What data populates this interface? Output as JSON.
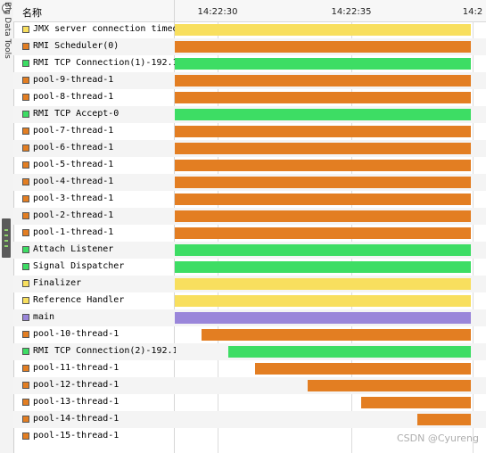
{
  "side_panel": {
    "label": "Big Data Tools"
  },
  "header": {
    "name_label": "名称",
    "time_ticks": [
      "14:22:30",
      "14:22:35",
      "14:2"
    ]
  },
  "colors": {
    "orange": "#e37e22",
    "green": "#3ddd64",
    "yellow": "#f8df5e",
    "purple": "#9a86da"
  },
  "threads": [
    {
      "name": "JMX server connection timeout",
      "color": "yellow",
      "start": 0.0,
      "end": 1.0
    },
    {
      "name": "RMI Scheduler(0)",
      "color": "orange",
      "start": 0.0,
      "end": 1.0
    },
    {
      "name": "RMI TCP Connection(1)-192.1",
      "color": "green",
      "start": 0.0,
      "end": 1.0
    },
    {
      "name": "pool-9-thread-1",
      "color": "orange",
      "start": 0.0,
      "end": 1.0
    },
    {
      "name": "pool-8-thread-1",
      "color": "orange",
      "start": 0.0,
      "end": 1.0
    },
    {
      "name": "RMI TCP Accept-0",
      "color": "green",
      "start": 0.0,
      "end": 1.0
    },
    {
      "name": "pool-7-thread-1",
      "color": "orange",
      "start": 0.0,
      "end": 1.0
    },
    {
      "name": "pool-6-thread-1",
      "color": "orange",
      "start": 0.0,
      "end": 1.0
    },
    {
      "name": "pool-5-thread-1",
      "color": "orange",
      "start": 0.0,
      "end": 1.0
    },
    {
      "name": "pool-4-thread-1",
      "color": "orange",
      "start": 0.0,
      "end": 1.0
    },
    {
      "name": "pool-3-thread-1",
      "color": "orange",
      "start": 0.0,
      "end": 1.0
    },
    {
      "name": "pool-2-thread-1",
      "color": "orange",
      "start": 0.0,
      "end": 1.0
    },
    {
      "name": "pool-1-thread-1",
      "color": "orange",
      "start": 0.0,
      "end": 1.0
    },
    {
      "name": "Attach Listener",
      "color": "green",
      "start": 0.0,
      "end": 1.0
    },
    {
      "name": "Signal Dispatcher",
      "color": "green",
      "start": 0.0,
      "end": 1.0
    },
    {
      "name": "Finalizer",
      "color": "yellow",
      "start": 0.0,
      "end": 1.0
    },
    {
      "name": "Reference Handler",
      "color": "yellow",
      "start": 0.0,
      "end": 1.0
    },
    {
      "name": "main",
      "color": "purple",
      "start": 0.0,
      "end": 1.0
    },
    {
      "name": "pool-10-thread-1",
      "color": "orange",
      "start": 0.09,
      "end": 1.0
    },
    {
      "name": "RMI TCP Connection(2)-192.1",
      "color": "green",
      "start": 0.18,
      "end": 1.0
    },
    {
      "name": "pool-11-thread-1",
      "color": "orange",
      "start": 0.27,
      "end": 1.0
    },
    {
      "name": "pool-12-thread-1",
      "color": "orange",
      "start": 0.45,
      "end": 1.0
    },
    {
      "name": "pool-13-thread-1",
      "color": "orange",
      "start": 0.63,
      "end": 1.0
    },
    {
      "name": "pool-14-thread-1",
      "color": "orange",
      "start": 0.82,
      "end": 1.0
    },
    {
      "name": "pool-15-thread-1",
      "color": "orange",
      "start": 1.0,
      "end": 1.0
    }
  ],
  "watermark": "CSDN @Cyureng"
}
